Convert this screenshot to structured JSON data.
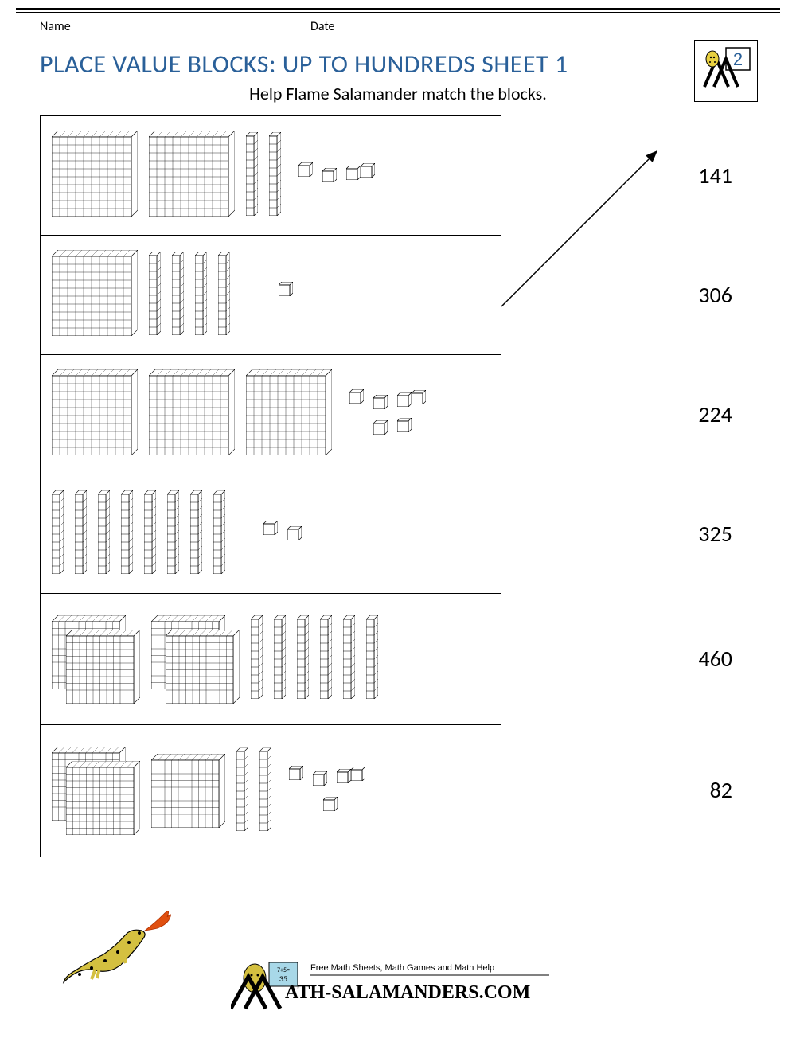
{
  "header": {
    "name_label": "Name",
    "date_label": "Date",
    "grade_badge": "2"
  },
  "title": "PLACE VALUE BLOCKS: UP TO HUNDREDS SHEET 1",
  "subtitle": "Help Flame Salamander match the blocks.",
  "colors": {
    "title": "#2a6099",
    "text": "#000000",
    "border": "#000000",
    "background": "#ffffff"
  },
  "rows": [
    {
      "hundreds": 2,
      "tens": 2,
      "ones": 4,
      "stacked": false
    },
    {
      "hundreds": 1,
      "tens": 4,
      "ones": 1,
      "stacked": false
    },
    {
      "hundreds": 3,
      "tens": 0,
      "ones": 6,
      "stacked": false
    },
    {
      "hundreds": 0,
      "tens": 8,
      "ones": 2,
      "stacked": false
    },
    {
      "hundreds": 4,
      "tens": 6,
      "ones": 0,
      "stacked": true
    },
    {
      "hundreds": 3,
      "tens": 2,
      "ones": 5,
      "stacked": true
    }
  ],
  "answers": [
    "141",
    "306",
    "224",
    "325",
    "460",
    "82"
  ],
  "arrow": {
    "from_row": 1,
    "to_answer": 0
  },
  "footer": {
    "tagline": "Free Math Sheets, Math Games and Math Help",
    "site": "ATH-SALAMANDERS.COM"
  },
  "block_style": {
    "hundred_size": 100,
    "ten_height": 100,
    "ten_width": 12,
    "one_size": 14,
    "stroke": "#000000",
    "fill": "#ffffff",
    "stroke_width": 0.6
  }
}
